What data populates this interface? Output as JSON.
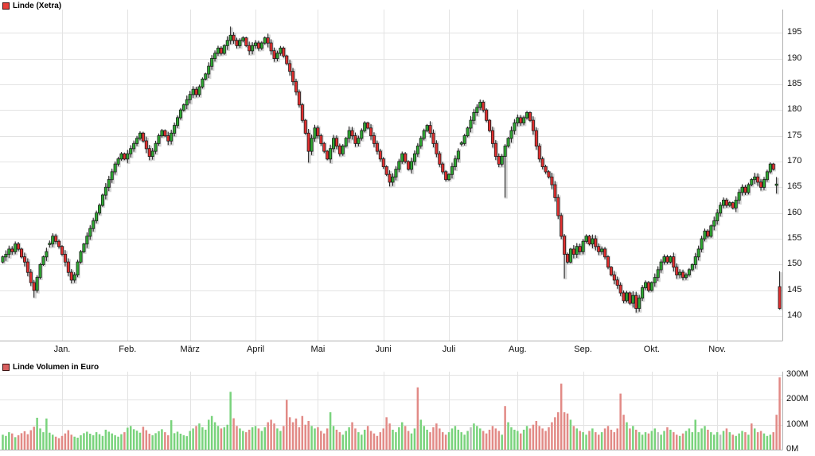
{
  "header": {
    "price_legend": "Linde (Xetra)",
    "volume_legend": "Linde Volumen in Euro"
  },
  "chart_data": {
    "type": "candlestick",
    "title": "Linde (Xetra)",
    "subtitle_volume": "Linde Volumen in Euro",
    "grid": true,
    "legend_position": "top-left",
    "price_axis": {
      "side": "right",
      "ticks": [
        195,
        190,
        185,
        180,
        175,
        170,
        165,
        160,
        155,
        150,
        145,
        140
      ],
      "ylim": [
        135,
        199.5
      ],
      "unit": "EUR"
    },
    "volume_axis": {
      "side": "right",
      "ticks": [
        {
          "label": "300M",
          "v": 300
        },
        {
          "label": "200M",
          "v": 200
        },
        {
          "label": "100M",
          "v": 100
        },
        {
          "label": "0M",
          "v": 0
        }
      ],
      "max": 310,
      "unit": "Euro"
    },
    "months": [
      {
        "label": "Jan.",
        "i": 19
      },
      {
        "label": "Feb.",
        "i": 40
      },
      {
        "label": "März",
        "i": 60
      },
      {
        "label": "April",
        "i": 81
      },
      {
        "label": "Mai",
        "i": 101
      },
      {
        "label": "Juni",
        "i": 122
      },
      {
        "label": "Juli",
        "i": 143
      },
      {
        "label": "Aug.",
        "i": 165
      },
      {
        "label": "Sep.",
        "i": 186
      },
      {
        "label": "Okt.",
        "i": 208
      },
      {
        "label": "Nov.",
        "i": 229
      }
    ],
    "first_open": 150.5,
    "closes": [
      151.5,
      152,
      153,
      152.5,
      154,
      153,
      151.5,
      150.5,
      148.5,
      146.5,
      145,
      147.5,
      150,
      151.5,
      152.5,
      154,
      155.5,
      154.5,
      153.5,
      152,
      150.5,
      148.5,
      147,
      148,
      150.5,
      152.5,
      154,
      155.5,
      157,
      158.5,
      160,
      161.5,
      163.5,
      165,
      166.5,
      168,
      169.5,
      170.5,
      171.5,
      170.5,
      171.5,
      172.5,
      173.5,
      174.5,
      175.5,
      174,
      172.5,
      171,
      172,
      173.5,
      175,
      176,
      175,
      174,
      175.5,
      177,
      178.5,
      180,
      181,
      182,
      183,
      184,
      183,
      184.5,
      186,
      187,
      188.5,
      190,
      191,
      192,
      191,
      192.5,
      193.5,
      194.5,
      193.5,
      192.5,
      193.5,
      194,
      192.5,
      191.5,
      192.5,
      193,
      192,
      193,
      194,
      193,
      191.5,
      190,
      191,
      192,
      190.5,
      189,
      187.5,
      185.5,
      183.5,
      181,
      178,
      175.5,
      172,
      174.5,
      176.5,
      175,
      173.5,
      172,
      170.5,
      172.5,
      174.5,
      173,
      171.5,
      173,
      174.5,
      176,
      175,
      173.5,
      174.5,
      176,
      177.5,
      176.5,
      175,
      173.5,
      172,
      170.5,
      169,
      167.5,
      166,
      167,
      168.5,
      170,
      171.5,
      170,
      168.5,
      170,
      171.5,
      173,
      174.5,
      176,
      177,
      175.5,
      173.5,
      171.5,
      169.5,
      168,
      166.5,
      167.5,
      169,
      170.5,
      172,
      173.5,
      175,
      176.5,
      178,
      179.5,
      180.5,
      181.5,
      180,
      178,
      176,
      173.5,
      171,
      169.5,
      171,
      173,
      174.5,
      176,
      177.5,
      178.5,
      177.5,
      178.5,
      179.5,
      178,
      176,
      173,
      170.5,
      169,
      168,
      167,
      165.5,
      163,
      159.5,
      155.5,
      152,
      150.5,
      153,
      152,
      153.5,
      152.5,
      154.5,
      155.5,
      154,
      155,
      153.5,
      152.5,
      153,
      151.5,
      149.5,
      148,
      147,
      146,
      144.5,
      143,
      144.5,
      142.5,
      144,
      141.5,
      143.5,
      145.5,
      146.5,
      145,
      146.5,
      147.5,
      149,
      150.5,
      151.5,
      150.5,
      151.5,
      149.5,
      148,
      148.5,
      147.5,
      148,
      149,
      150,
      151.5,
      153,
      155,
      156.5,
      155.5,
      157.5,
      158.5,
      160,
      161.5,
      162.5,
      161.5,
      162,
      161,
      162.5,
      164,
      165,
      164,
      165.5,
      166.5,
      167,
      166,
      165,
      166.5,
      168,
      169.5,
      168.5,
      165.5,
      141.5
    ],
    "volumes": [
      60,
      55,
      70,
      65,
      50,
      58,
      66,
      74,
      62,
      78,
      92,
      128,
      85,
      70,
      125,
      68,
      60,
      52,
      46,
      55,
      65,
      78,
      60,
      52,
      48,
      58,
      66,
      72,
      64,
      58,
      70,
      62,
      55,
      80,
      72,
      65,
      58,
      52,
      62,
      70,
      88,
      95,
      82,
      76,
      68,
      92,
      78,
      64,
      58,
      66,
      74,
      82,
      70,
      58,
      118,
      66,
      72,
      64,
      58,
      54,
      75,
      85,
      95,
      105,
      90,
      80,
      120,
      135,
      110,
      95,
      85,
      90,
      100,
      232,
      126,
      95,
      85,
      75,
      70,
      80,
      90,
      95,
      85,
      75,
      90,
      110,
      120,
      105,
      85,
      75,
      95,
      200,
      130,
      110,
      125,
      90,
      135,
      100,
      115,
      95,
      85,
      90,
      75,
      65,
      85,
      150,
      95,
      80,
      70,
      60,
      75,
      90,
      110,
      85,
      70,
      60,
      80,
      95,
      75,
      65,
      55,
      70,
      85,
      130,
      105,
      80,
      70,
      90,
      110,
      95,
      75,
      65,
      85,
      250,
      120,
      95,
      80,
      70,
      90,
      105,
      85,
      70,
      60,
      70,
      85,
      95,
      80,
      70,
      60,
      75,
      90,
      105,
      95,
      85,
      75,
      65,
      80,
      95,
      85,
      75,
      60,
      175,
      110,
      90,
      80,
      75,
      65,
      80,
      95,
      85,
      100,
      115,
      95,
      85,
      75,
      90,
      110,
      130,
      150,
      265,
      150,
      145,
      120,
      95,
      85,
      75,
      70,
      60,
      75,
      85,
      70,
      60,
      70,
      85,
      95,
      80,
      70,
      85,
      225,
      140,
      110,
      85,
      95,
      80,
      70,
      60,
      70,
      65,
      75,
      85,
      70,
      60,
      75,
      90,
      80,
      70,
      60,
      55,
      65,
      75,
      85,
      70,
      120,
      70,
      85,
      95,
      80,
      70,
      60,
      70,
      60,
      75,
      85,
      70,
      60,
      55,
      65,
      75,
      70,
      60,
      105,
      85,
      70,
      75,
      65,
      55,
      60,
      70,
      140,
      290
    ],
    "overrides": {
      "10": {
        "low": 143.6
      },
      "15": {
        "doji": true
      },
      "73": {
        "high": 196.2
      },
      "98": {
        "low": 169.8
      },
      "147": {
        "doji": true
      },
      "161": {
        "low": 163
      },
      "180": {
        "low": 147.3
      },
      "203": {
        "low": 140.7
      },
      "248": {
        "doji": true,
        "high": 167,
        "low": 163.8
      },
      "249": {
        "open": 145.7,
        "high": 148.7,
        "low": 141.3
      }
    },
    "red_volume_idx": [
      133,
      161,
      240
    ],
    "neutral_volume_idx": [
      150,
      210,
      230
    ],
    "colors": {
      "up": "#2fa933",
      "down": "#e03030",
      "wick": "#1a1a1a",
      "vol_up": "#79d37c",
      "vol_down": "#e28a86",
      "vol_neutral": "#bdbdbd",
      "grid": "#e3e3e3",
      "axis": "#b0b0b0",
      "legend_price_swatch": "#e8403a",
      "legend_volume_swatch": "#d96060",
      "text": "#000000"
    }
  }
}
